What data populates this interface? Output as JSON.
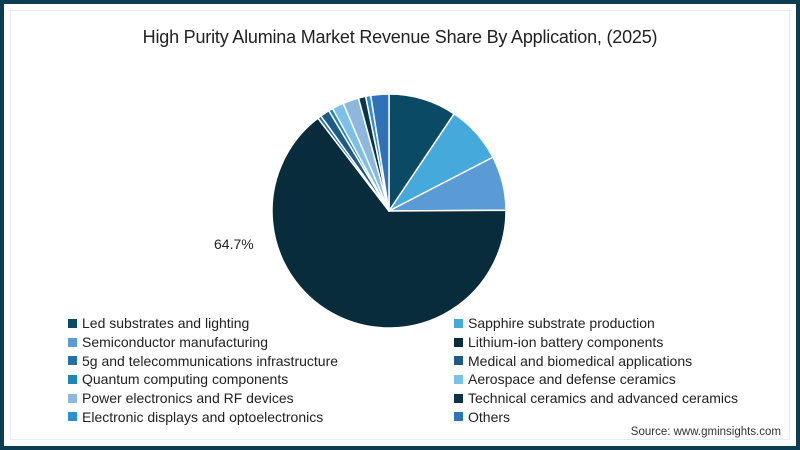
{
  "title": "High Purity Alumina Market Revenue Share By Application, (2025)",
  "source": "Source: www.gminsights.com",
  "pie_label": "64.7%",
  "colors": {
    "frame": "#0d3d52",
    "background": "#ffffff"
  },
  "chart_data": {
    "type": "pie",
    "title": "High Purity Alumina Market Revenue Share By Application, (2025)",
    "start_angle": "12 o'clock",
    "direction": "clockwise",
    "legend_position": "bottom, two columns",
    "annotations": [
      {
        "label": "64.7%",
        "slice": "Lithium-ion battery components"
      }
    ],
    "categories": [
      "Led substrates and lighting",
      "Sapphire substrate production",
      "Semiconductor manufacturing",
      "Lithium-ion battery components",
      "5g and telecommunications infrastructure",
      "Medical and biomedical applications",
      "Quantum computing components",
      "Aerospace and defense ceramics",
      "Power electronics and RF devices",
      "Technical ceramics and advanced ceramics",
      "Electronic displays and optoelectronics",
      "Others"
    ],
    "values": [
      9.4,
      8.0,
      7.5,
      64.7,
      0.5,
      1.3,
      0.6,
      1.6,
      2.2,
      1.0,
      0.7,
      2.5
    ],
    "colors": [
      "#0b4a64",
      "#46a9dc",
      "#5b9bd5",
      "#082c3c",
      "#2671a3",
      "#1d5a86",
      "#1e88b5",
      "#7cc0e8",
      "#8db7dc",
      "#0d3446",
      "#2d8fd0",
      "#2f72b8"
    ]
  },
  "legend": {
    "left": [
      {
        "label": "Led substrates and lighting",
        "color": "#0b4a64"
      },
      {
        "label": "Semiconductor manufacturing",
        "color": "#5b9bd5"
      },
      {
        "label": "5g and telecommunications infrastructure",
        "color": "#2671a3"
      },
      {
        "label": "Quantum computing components",
        "color": "#1e88b5"
      },
      {
        "label": "Power electronics and RF devices",
        "color": "#8db7dc"
      },
      {
        "label": "Electronic displays and optoelectronics",
        "color": "#2d8fd0"
      }
    ],
    "right": [
      {
        "label": "Sapphire substrate production",
        "color": "#46a9dc"
      },
      {
        "label": "Lithium-ion battery components",
        "color": "#082c3c"
      },
      {
        "label": "Medical and biomedical applications",
        "color": "#1d5a86"
      },
      {
        "label": "Aerospace and defense ceramics",
        "color": "#7cc0e8"
      },
      {
        "label": "Technical ceramics and advanced ceramics",
        "color": "#0d3446"
      },
      {
        "label": "Others",
        "color": "#2f72b8"
      }
    ]
  }
}
